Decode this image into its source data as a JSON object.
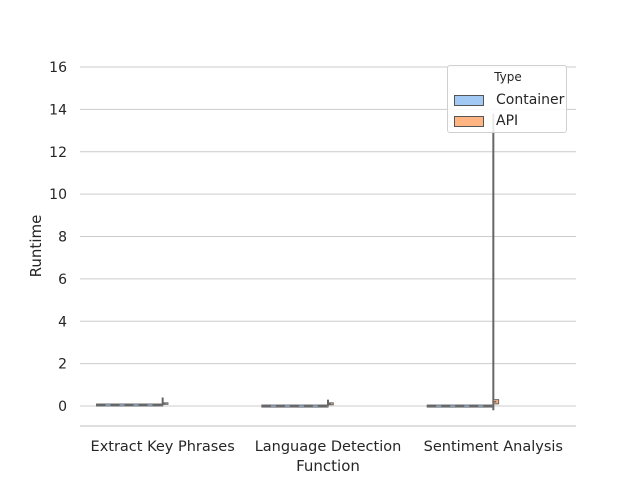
{
  "chart_data": {
    "type": "violin",
    "xlabel": "Function",
    "ylabel": "Runtime",
    "categories": [
      "Extract Key Phrases",
      "Language Detection",
      "Sentiment Analysis"
    ],
    "ylim": [
      -1,
      16.8
    ],
    "yticks": [
      0,
      2,
      4,
      6,
      8,
      10,
      12,
      14,
      16
    ],
    "grid": "horizontal",
    "legend": {
      "title": "Type",
      "placement": "top-right",
      "entries": [
        {
          "name": "Container",
          "color": "#a1c9f4"
        },
        {
          "name": "API",
          "color": "#ffb482"
        }
      ]
    },
    "series": [
      {
        "name": "Container",
        "color": "#a1c9f4",
        "values": [
          {
            "median": 0.06,
            "q1": 0.05,
            "q3": 0.07,
            "min": 0.03,
            "max": 0.1
          },
          {
            "median": 0.01,
            "q1": 0.0,
            "q3": 0.02,
            "min": -0.01,
            "max": 0.04
          },
          {
            "median": 0.01,
            "q1": 0.0,
            "q3": 0.02,
            "min": -0.01,
            "max": 0.03
          }
        ]
      },
      {
        "name": "API",
        "color": "#ffb482",
        "values": [
          {
            "median": 0.1,
            "q1": 0.08,
            "q3": 0.15,
            "min": 0.05,
            "max": 0.4
          },
          {
            "median": 0.1,
            "q1": 0.06,
            "q3": 0.15,
            "min": 0.03,
            "max": 0.3
          },
          {
            "median": 0.2,
            "q1": 0.1,
            "q3": 0.3,
            "min": -0.2,
            "max": 13.8
          }
        ]
      }
    ]
  }
}
